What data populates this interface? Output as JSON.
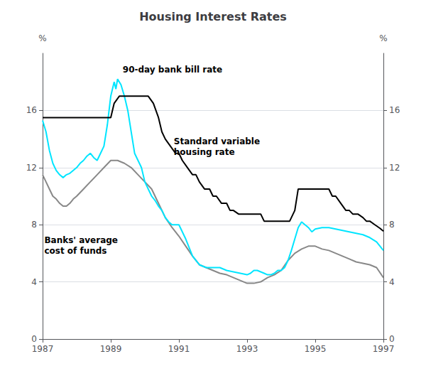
{
  "chart_data": {
    "type": "line",
    "title": "Housing Interest Rates",
    "ylabel": "%",
    "y2label": "%",
    "xlim": [
      1987.0,
      1997.0
    ],
    "xticks": [
      1987,
      1989,
      1991,
      1993,
      1995,
      1997
    ],
    "ylim": [
      0,
      20
    ],
    "yticks": [
      0,
      4,
      8,
      12,
      16
    ],
    "y2lim": [
      0,
      20
    ],
    "y2ticks": [
      0,
      4,
      8,
      12,
      16
    ],
    "grid": true,
    "series": [
      {
        "color": "#888888",
        "x": [
          1987.0,
          1987.1,
          1987.2,
          1987.3,
          1987.4,
          1987.5,
          1987.6,
          1987.7,
          1987.8,
          1987.9,
          1988.0,
          1988.2,
          1988.4,
          1988.6,
          1988.8,
          1989.0,
          1989.2,
          1989.4,
          1989.6,
          1989.8,
          1990.0,
          1990.2,
          1990.4,
          1990.6,
          1990.8,
          1991.0,
          1991.2,
          1991.4,
          1991.6,
          1991.8,
          1992.0,
          1992.2,
          1992.4,
          1992.6,
          1992.8,
          1993.0,
          1993.2,
          1993.4,
          1993.6,
          1993.8,
          1994.0,
          1994.2,
          1994.4,
          1994.6,
          1994.8,
          1995.0,
          1995.2,
          1995.4,
          1995.6,
          1995.8,
          1996.0,
          1996.2,
          1996.4,
          1996.6,
          1996.8,
          1997.0
        ],
        "values": [
          11.5,
          11.0,
          10.5,
          10.0,
          9.8,
          9.5,
          9.3,
          9.3,
          9.5,
          9.8,
          10.0,
          10.5,
          11.0,
          11.5,
          12.0,
          12.5,
          12.5,
          12.3,
          12.0,
          11.5,
          11.0,
          10.5,
          9.5,
          8.5,
          7.8,
          7.2,
          6.5,
          5.8,
          5.2,
          5.0,
          4.8,
          4.6,
          4.5,
          4.3,
          4.1,
          3.9,
          3.9,
          4.0,
          4.3,
          4.5,
          4.8,
          5.5,
          6.0,
          6.3,
          6.5,
          6.5,
          6.3,
          6.2,
          6.0,
          5.8,
          5.6,
          5.4,
          5.3,
          5.2,
          5.0,
          4.3
        ]
      },
      {
        "color": "#00e5ff",
        "x": [
          1987.0,
          1987.1,
          1987.2,
          1987.3,
          1987.4,
          1987.5,
          1987.6,
          1987.7,
          1987.8,
          1987.9,
          1988.0,
          1988.1,
          1988.2,
          1988.3,
          1988.4,
          1988.5,
          1988.6,
          1988.7,
          1988.8,
          1988.9,
          1989.0,
          1989.1,
          1989.15,
          1989.2,
          1989.3,
          1989.4,
          1989.5,
          1989.6,
          1989.7,
          1989.8,
          1989.9,
          1990.0,
          1990.1,
          1990.2,
          1990.3,
          1990.4,
          1990.5,
          1990.6,
          1990.7,
          1990.8,
          1990.9,
          1991.0,
          1991.2,
          1991.4,
          1991.6,
          1991.8,
          1992.0,
          1992.2,
          1992.4,
          1992.6,
          1992.8,
          1993.0,
          1993.1,
          1993.2,
          1993.3,
          1993.4,
          1993.5,
          1993.6,
          1993.7,
          1993.8,
          1993.9,
          1994.0,
          1994.1,
          1994.2,
          1994.3,
          1994.4,
          1994.5,
          1994.6,
          1994.7,
          1994.8,
          1994.9,
          1995.0,
          1995.2,
          1995.4,
          1995.6,
          1995.8,
          1996.0,
          1996.2,
          1996.4,
          1996.6,
          1996.8,
          1997.0
        ],
        "values": [
          15.3,
          14.5,
          13.2,
          12.3,
          11.8,
          11.5,
          11.3,
          11.5,
          11.6,
          11.8,
          12.0,
          12.3,
          12.5,
          12.8,
          13.0,
          12.7,
          12.5,
          13.0,
          13.5,
          15.0,
          17.0,
          18.0,
          17.5,
          18.2,
          17.8,
          17.0,
          16.0,
          14.5,
          13.0,
          12.5,
          12.0,
          11.0,
          10.5,
          10.0,
          9.7,
          9.3,
          9.0,
          8.5,
          8.2,
          8.0,
          8.0,
          8.0,
          7.0,
          5.8,
          5.2,
          5.0,
          5.0,
          5.0,
          4.8,
          4.7,
          4.6,
          4.5,
          4.6,
          4.8,
          4.8,
          4.7,
          4.6,
          4.5,
          4.5,
          4.6,
          4.8,
          4.8,
          5.0,
          5.5,
          6.2,
          7.0,
          7.8,
          8.2,
          8.0,
          7.8,
          7.5,
          7.7,
          7.8,
          7.8,
          7.7,
          7.6,
          7.5,
          7.4,
          7.3,
          7.1,
          6.8,
          6.2
        ]
      },
      {
        "color": "#000000",
        "x": [
          1987.0,
          1987.5,
          1987.75,
          1988.0,
          1988.25,
          1988.5,
          1988.75,
          1989.0,
          1989.1,
          1989.25,
          1989.5,
          1989.75,
          1990.0,
          1990.1,
          1990.25,
          1990.4,
          1990.5,
          1990.6,
          1990.75,
          1990.9,
          1991.0,
          1991.1,
          1991.25,
          1991.4,
          1991.5,
          1991.6,
          1991.75,
          1991.9,
          1992.0,
          1992.1,
          1992.25,
          1992.4,
          1992.5,
          1992.6,
          1992.75,
          1992.9,
          1993.0,
          1993.1,
          1993.25,
          1993.4,
          1993.5,
          1993.6,
          1993.75,
          1993.9,
          1994.0,
          1994.1,
          1994.25,
          1994.4,
          1994.5,
          1994.6,
          1994.75,
          1994.9,
          1995.0,
          1995.1,
          1995.25,
          1995.4,
          1995.5,
          1995.6,
          1995.75,
          1995.9,
          1996.0,
          1996.1,
          1996.25,
          1996.4,
          1996.5,
          1996.6,
          1996.75,
          1996.9,
          1997.0
        ],
        "values": [
          15.5,
          15.5,
          15.5,
          15.5,
          15.5,
          15.5,
          15.5,
          15.5,
          16.5,
          17.0,
          17.0,
          17.0,
          17.0,
          17.0,
          16.5,
          15.5,
          14.5,
          14.0,
          13.5,
          13.0,
          13.0,
          12.5,
          12.0,
          11.5,
          11.5,
          11.0,
          10.5,
          10.5,
          10.0,
          10.0,
          9.5,
          9.5,
          9.0,
          9.0,
          8.75,
          8.75,
          8.75,
          8.75,
          8.75,
          8.75,
          8.25,
          8.25,
          8.25,
          8.25,
          8.25,
          8.25,
          8.25,
          9.0,
          10.5,
          10.5,
          10.5,
          10.5,
          10.5,
          10.5,
          10.5,
          10.5,
          10.0,
          10.0,
          9.5,
          9.0,
          9.0,
          8.75,
          8.75,
          8.5,
          8.25,
          8.25,
          8.0,
          7.75,
          7.55
        ]
      }
    ],
    "annotations": [
      {
        "x": 1989.35,
        "y": 18.5,
        "text": "90-day bank bill rate"
      },
      {
        "x": 1990.85,
        "y": 14.2,
        "text": "Standard variable\nhousing rate"
      },
      {
        "x": 1987.05,
        "y": 7.3,
        "text": "Banks' average\ncost of funds"
      }
    ]
  }
}
